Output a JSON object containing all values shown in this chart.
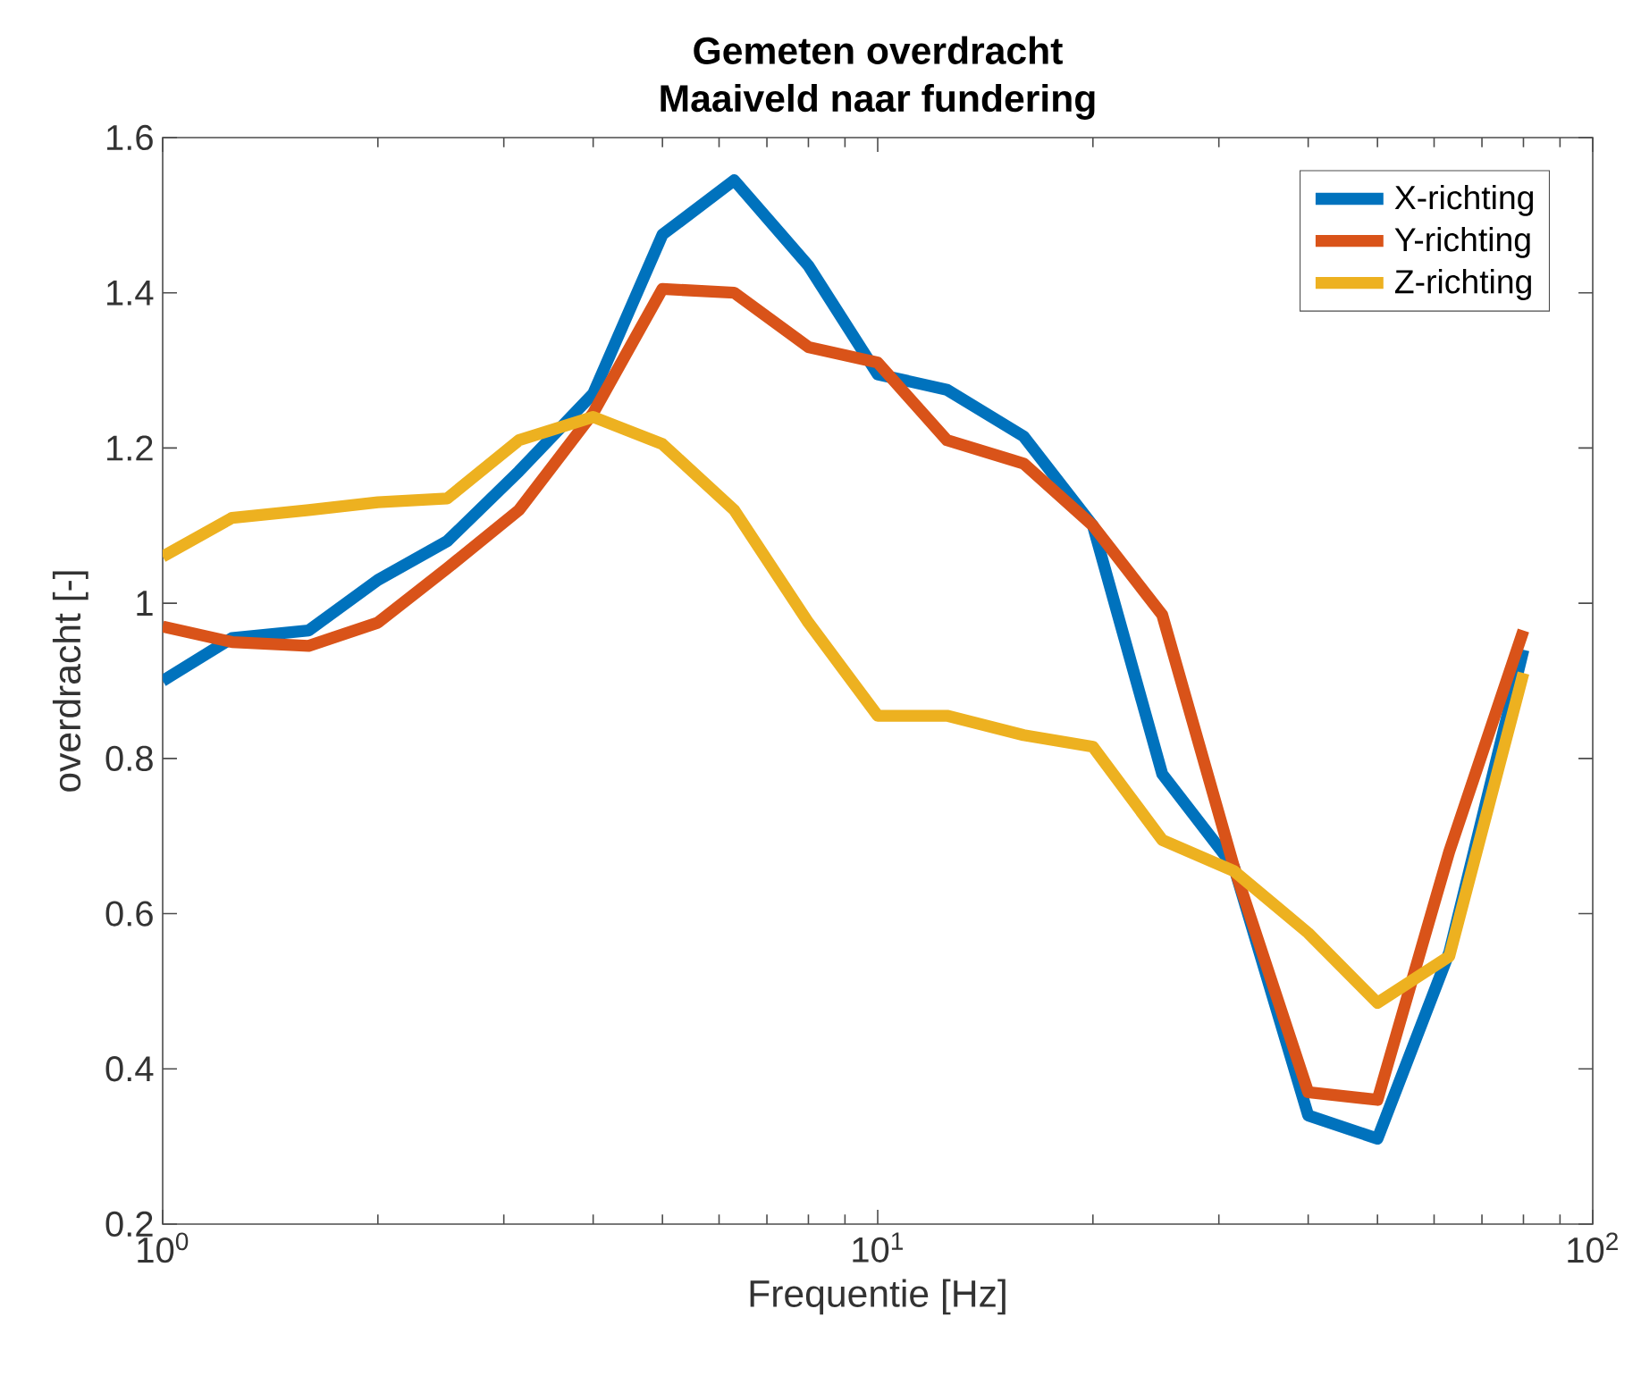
{
  "chart_data": {
    "type": "line",
    "title": "Gemeten overdracht",
    "subtitle": "Maaiveld naar fundering",
    "xlabel": "Frequentie [Hz]",
    "ylabel": "overdracht [-]",
    "x": [
      1,
      1.25,
      1.6,
      2,
      2.5,
      3.15,
      4,
      5,
      6.3,
      8,
      10,
      12.5,
      16,
      20,
      25,
      31.5,
      40,
      50,
      63,
      80
    ],
    "series": [
      {
        "name": "X-richting",
        "color": "#0072bd",
        "values": [
          0.9,
          0.955,
          0.965,
          1.03,
          1.08,
          1.17,
          1.27,
          1.475,
          1.545,
          1.435,
          1.295,
          1.275,
          1.215,
          1.1,
          0.78,
          0.66,
          0.34,
          0.31,
          0.55,
          0.94
        ]
      },
      {
        "name": "Y-richting",
        "color": "#d95319",
        "values": [
          0.97,
          0.95,
          0.945,
          0.975,
          1.045,
          1.12,
          1.245,
          1.405,
          1.4,
          1.33,
          1.31,
          1.21,
          1.18,
          1.1,
          0.985,
          0.66,
          0.37,
          0.36,
          0.68,
          0.965
        ]
      },
      {
        "name": "Z-richting",
        "color": "#edb120",
        "values": [
          1.06,
          1.11,
          1.12,
          1.13,
          1.135,
          1.21,
          1.24,
          1.205,
          1.12,
          0.975,
          0.855,
          0.855,
          0.83,
          0.815,
          0.695,
          0.655,
          0.575,
          0.485,
          0.545,
          0.91
        ]
      }
    ],
    "log": "x",
    "xlim": [
      1,
      100
    ],
    "xticks": [
      {
        "value": 1,
        "label": "10$^{0}$"
      },
      {
        "value": 10,
        "label": "10$^{1}$"
      },
      {
        "value": 100,
        "label": "10$^{2}$"
      }
    ],
    "ylim": [
      0.2,
      1.6
    ],
    "yticks": [
      0.2,
      0.4,
      0.6,
      0.8,
      1,
      1.2,
      1.4,
      1.6
    ],
    "grid": false,
    "legend": "top right",
    "marker": "none",
    "line_style": "solid"
  }
}
